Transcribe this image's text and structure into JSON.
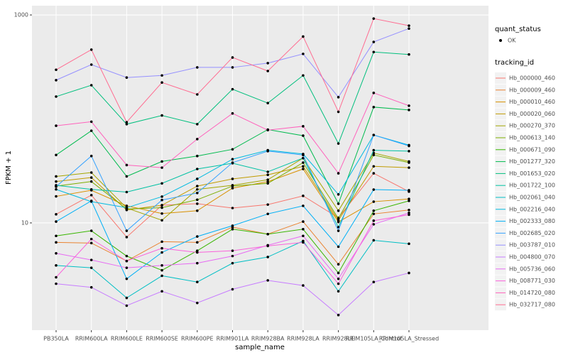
{
  "chart_data": {
    "type": "line",
    "x_label": "sample_name",
    "y_label": "FPKM + 1",
    "log_scale": true,
    "grid": true,
    "categories": [
      "PB350LA",
      "RRIM600LA",
      "RRIM600LE",
      "RRIM600SE",
      "RRIM600PE",
      "RRIM901LA",
      "RRIM928BA",
      "RRIM928LA",
      "RRIM928LE",
      "RRIM105LA_Control",
      "RRIM105LA_Stressed"
    ],
    "ylim": [
      0.93,
      1228
    ],
    "yticks": [
      10,
      1000
    ],
    "legend_position": "right",
    "legend_status_title": "quant_status",
    "legend_status_label": "OK",
    "legend_title": "tracking_id",
    "series": [
      {
        "name": "Hb_000000_460",
        "color": "#F8766D",
        "values": [
          12.1,
          18.5,
          7.3,
          14.8,
          15.3,
          13.9,
          15.0,
          18.2,
          11.2,
          30,
          20
        ]
      },
      {
        "name": "Hb_000009_460",
        "color": "#EA8331",
        "values": [
          6.5,
          6.4,
          4.3,
          6.6,
          6.5,
          9.1,
          7.8,
          10.3,
          4.0,
          12.2,
          13.3
        ]
      },
      {
        "name": "Hb_000010_460",
        "color": "#D89000",
        "values": [
          18,
          20.6,
          14.6,
          12.3,
          13.1,
          21.6,
          24.9,
          33,
          10.2,
          16,
          17
        ]
      },
      {
        "name": "Hb_000020_060",
        "color": "#C09B00",
        "values": [
          25,
          27.3,
          13.3,
          14.8,
          22.6,
          26.5,
          29,
          35,
          10.6,
          35,
          34
        ]
      },
      {
        "name": "Hb_000270_370",
        "color": "#A3A500",
        "values": [
          28,
          30.5,
          13.9,
          10.6,
          21,
          23,
          26,
          42,
          13.1,
          47,
          39
        ]
      },
      {
        "name": "Hb_000613_140",
        "color": "#7CAE00",
        "values": [
          22.6,
          25,
          13.6,
          14.0,
          16.7,
          22.6,
          24,
          38,
          11,
          45,
          38
        ]
      },
      {
        "name": "Hb_000671_090",
        "color": "#39B600",
        "values": [
          7.5,
          8.4,
          4.8,
          3.5,
          5.4,
          8.7,
          7.8,
          8.7,
          3.3,
          13.1,
          16.3
        ]
      },
      {
        "name": "Hb_001277_320",
        "color": "#00BB4E",
        "values": [
          45,
          77,
          28,
          39,
          44,
          51,
          79,
          69,
          15.3,
          130,
          122
        ]
      },
      {
        "name": "Hb_001653_020",
        "color": "#00BF7D",
        "values": [
          164,
          211,
          89,
          108,
          89,
          193,
          142,
          262,
          58,
          440,
          417
        ]
      },
      {
        "name": "Hb_001722_100",
        "color": "#00C1A3",
        "values": [
          23,
          21,
          19.8,
          24,
          33,
          37.5,
          31,
          42,
          9.1,
          50,
          49
        ]
      },
      {
        "name": "Hb_002061_040",
        "color": "#00BFC4",
        "values": [
          3.9,
          3.7,
          1.9,
          3.1,
          2.7,
          4.1,
          4.7,
          6.7,
          2.2,
          6.8,
          6.3
        ]
      },
      {
        "name": "Hb_002216_040",
        "color": "#00BAE0",
        "values": [
          21,
          16,
          14,
          17.9,
          26.5,
          41,
          50,
          46,
          18.8,
          70,
          56
        ]
      },
      {
        "name": "Hb_002333_080",
        "color": "#00B0F6",
        "values": [
          10.3,
          16.3,
          2.9,
          5.2,
          7.4,
          9.4,
          12.2,
          14.6,
          5.9,
          20.9,
          20.6
        ]
      },
      {
        "name": "Hb_002685_020",
        "color": "#35A2FF",
        "values": [
          22.3,
          44,
          8.4,
          16.6,
          19.4,
          38,
          49,
          45,
          8.4,
          70,
          55
        ]
      },
      {
        "name": "Hb_003787_010",
        "color": "#9590FF",
        "values": [
          236,
          333,
          250,
          262,
          313,
          313,
          344,
          422,
          162,
          550,
          740
        ]
      },
      {
        "name": "Hb_004800_070",
        "color": "#C77CFF",
        "values": [
          2.6,
          2.4,
          1.6,
          2.2,
          1.7,
          2.3,
          2.8,
          2.5,
          1.3,
          2.7,
          3.3
        ]
      },
      {
        "name": "Hb_005736_060",
        "color": "#E76BF3",
        "values": [
          5.1,
          4.4,
          3.7,
          3.9,
          4.1,
          4.8,
          6.1,
          7.5,
          2.9,
          9.7,
          12.5
        ]
      },
      {
        "name": "Hb_008771_030",
        "color": "#FA62DB",
        "values": [
          3.0,
          7.0,
          4.3,
          5.7,
          5.2,
          5.4,
          6.0,
          6.5,
          2.6,
          10.5,
          12.0
        ]
      },
      {
        "name": "Hb_014720_080",
        "color": "#FF62BC",
        "values": [
          86,
          94,
          36,
          34,
          64,
          113,
          78,
          85,
          30,
          178,
          134
        ]
      },
      {
        "name": "Hb_032717_080",
        "color": "#FF6C91",
        "values": [
          297,
          464,
          93,
          224,
          172,
          390,
          289,
          620,
          117,
          923,
          789
        ]
      }
    ]
  }
}
